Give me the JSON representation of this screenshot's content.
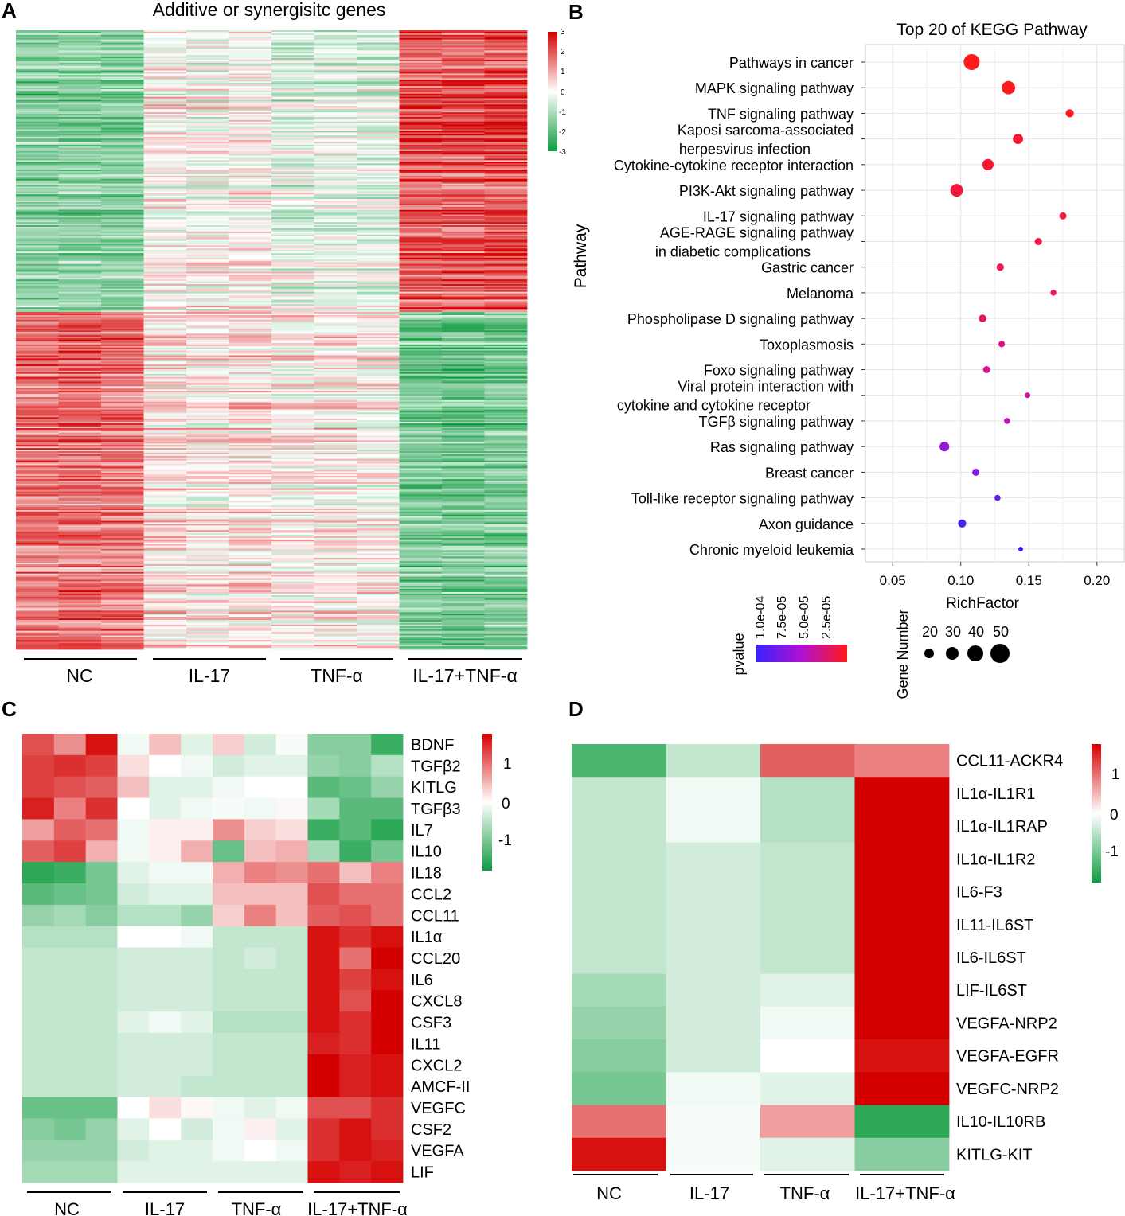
{
  "panels": {
    "A": {
      "label": "A",
      "title": "Additive or synergisitc genes",
      "groups": [
        "NC",
        "IL-17",
        "TNF-α",
        "IL-17+TNF-α"
      ],
      "legend_ticks": [
        "3",
        "2",
        "1",
        "0",
        "-1",
        "-2",
        "-3"
      ]
    },
    "B": {
      "label": "B",
      "title": "Top 20 of KEGG Pathway",
      "y_title": "Pathway",
      "x_title": "RichFactor",
      "pvalue_title": "pvalue",
      "pvalue_ticks": [
        "1.0e-04",
        "7.5e-05",
        "5.0e-05",
        "2.5e-05"
      ],
      "size_title": "Gene Number",
      "size_ticks": [
        "20",
        "30",
        "40",
        "50"
      ]
    },
    "C": {
      "label": "C",
      "groups": [
        "NC",
        "IL-17",
        "TNF-α",
        "IL-17+TNF-α"
      ],
      "legend_ticks": [
        "1",
        "0",
        "-1"
      ]
    },
    "D": {
      "label": "D",
      "groups": [
        "NC",
        "IL-17",
        "TNF-α",
        "IL-17+TNF-α"
      ],
      "legend_ticks": [
        "1",
        "0",
        "-1"
      ]
    }
  },
  "colors": {
    "heat_high": "#d40000",
    "heat_mid": "#ffffff",
    "heat_low": "#0e9b3f",
    "p_low": "#ff1a1a",
    "p_high": "#3a22ff"
  },
  "chart_data": [
    {
      "id": "A",
      "type": "heatmap",
      "title": "Additive or synergisitc genes",
      "columns": [
        "NC",
        "NC",
        "NC",
        "IL-17",
        "IL-17",
        "IL-17",
        "TNF-α",
        "TNF-α",
        "TNF-α",
        "IL-17+TNF-α",
        "IL-17+TNF-α",
        "IL-17+TNF-α"
      ],
      "cluster_pattern_upregulated": [
        -1.2,
        -1.2,
        -1.2,
        0.1,
        0.0,
        0.1,
        -0.3,
        -0.2,
        -0.3,
        1.6,
        1.6,
        1.7
      ],
      "cluster_pattern_downregulated": [
        1.3,
        1.4,
        1.3,
        0.3,
        0.2,
        0.3,
        0.1,
        0.2,
        0.1,
        -1.3,
        -1.4,
        -1.3
      ],
      "scale": [
        -3,
        3
      ]
    },
    {
      "id": "B",
      "type": "scatter",
      "title": "Top 20 of KEGG Pathway",
      "xlabel": "RichFactor",
      "ylabel": "Pathway",
      "xlim": [
        0.03,
        0.22
      ],
      "xticks": [
        "0.05",
        "0.10",
        "0.15",
        "0.20"
      ],
      "pathways": [
        {
          "name": [
            "Pathways in cancer"
          ],
          "x": 0.108,
          "genes": 52,
          "p": 2e-06
        },
        {
          "name": [
            "MAPK signaling pathway"
          ],
          "x": 0.135,
          "genes": 42,
          "p": 4e-06
        },
        {
          "name": [
            "TNF signaling pathway"
          ],
          "x": 0.18,
          "genes": 22,
          "p": 6e-06
        },
        {
          "name": [
            "Kaposi sarcoma-associated",
            "herpesvirus infection"
          ],
          "x": 0.142,
          "genes": 30,
          "p": 8e-06
        },
        {
          "name": [
            "Cytokine-cytokine receptor interaction"
          ],
          "x": 0.12,
          "genes": 34,
          "p": 1e-05
        },
        {
          "name": [
            "PI3K-Akt signaling pathway"
          ],
          "x": 0.097,
          "genes": 40,
          "p": 1.2e-05
        },
        {
          "name": [
            "IL-17 signaling pathway"
          ],
          "x": 0.175,
          "genes": 18,
          "p": 1.4e-05
        },
        {
          "name": [
            "AGE-RAGE signaling pathway",
            "in diabetic complications"
          ],
          "x": 0.157,
          "genes": 18,
          "p": 1.6e-05
        },
        {
          "name": [
            "Gastric cancer"
          ],
          "x": 0.129,
          "genes": 19,
          "p": 1.8e-05
        },
        {
          "name": [
            "Melanoma"
          ],
          "x": 0.168,
          "genes": 13,
          "p": 2e-05
        },
        {
          "name": [
            "Phospholipase D signaling pathway"
          ],
          "x": 0.116,
          "genes": 20,
          "p": 2.5e-05
        },
        {
          "name": [
            "Toxoplasmosis"
          ],
          "x": 0.13,
          "genes": 16,
          "p": 3.5e-05
        },
        {
          "name": [
            "Foxo signaling pathway"
          ],
          "x": 0.119,
          "genes": 18,
          "p": 4e-05
        },
        {
          "name": [
            "Viral protein interaction with",
            "cytokine and cytokine receptor"
          ],
          "x": 0.149,
          "genes": 12,
          "p": 4.5e-05
        },
        {
          "name": [
            "TGFβ signaling pathway"
          ],
          "x": 0.134,
          "genes": 14,
          "p": 5.5e-05
        },
        {
          "name": [
            "Ras signaling pathway"
          ],
          "x": 0.088,
          "genes": 28,
          "p": 7e-05
        },
        {
          "name": [
            "Breast cancer"
          ],
          "x": 0.111,
          "genes": 18,
          "p": 7.5e-05
        },
        {
          "name": [
            "Toll-like receptor signaling pathway"
          ],
          "x": 0.127,
          "genes": 14,
          "p": 8.5e-05
        },
        {
          "name": [
            "Axon guidance"
          ],
          "x": 0.101,
          "genes": 22,
          "p": 9.5e-05
        },
        {
          "name": [
            "Chronic myeloid leukemia"
          ],
          "x": 0.144,
          "genes": 9,
          "p": 0.0001
        }
      ]
    },
    {
      "id": "C",
      "type": "heatmap",
      "columns": [
        "NC",
        "NC",
        "NC",
        "IL-17",
        "IL-17",
        "IL-17",
        "TNF-α",
        "TNF-α",
        "TNF-α",
        "IL-17+TNF-α",
        "IL-17+TNF-α",
        "IL-17+TNF-α"
      ],
      "rows": [
        "BDNF",
        "TGFβ2",
        "KITLG",
        "TGFβ3",
        "IL7",
        "IL10",
        "IL18",
        "CCL2",
        "CCL11",
        "IL1α",
        "CCL20",
        "IL6",
        "CXCL8",
        "CSF3",
        "IL11",
        "CXCL2",
        "AMCF-II",
        "VEGFC",
        "CSF2",
        "VEGFA",
        "LIF"
      ],
      "values": [
        [
          1.1,
          0.7,
          1.5,
          -0.1,
          0.4,
          -0.2,
          0.3,
          -0.3,
          -0.05,
          -0.8,
          -0.8,
          -1.3
        ],
        [
          1.2,
          1.3,
          1.2,
          0.2,
          0.0,
          -0.1,
          -0.3,
          -0.2,
          -0.2,
          -0.7,
          -0.8,
          -0.5
        ],
        [
          1.2,
          1.1,
          1.0,
          0.4,
          -0.2,
          -0.2,
          -0.1,
          0.0,
          0.0,
          -1.1,
          -1.0,
          -0.7
        ],
        [
          1.4,
          0.8,
          1.3,
          0.0,
          -0.2,
          -0.1,
          -0.05,
          -0.1,
          0.05,
          -0.6,
          -1.1,
          -1.1
        ],
        [
          0.6,
          1.0,
          0.9,
          -0.1,
          0.1,
          0.1,
          0.7,
          0.3,
          0.2,
          -1.3,
          -1.1,
          -1.4
        ],
        [
          1.0,
          1.2,
          0.5,
          -0.1,
          0.1,
          0.5,
          -1.0,
          0.4,
          0.5,
          -0.6,
          -1.3,
          -0.9
        ],
        [
          -1.4,
          -1.3,
          -0.9,
          -0.2,
          -0.1,
          -0.1,
          0.5,
          0.8,
          0.7,
          0.9,
          0.4,
          0.8
        ],
        [
          -1.1,
          -1.0,
          -0.9,
          -0.3,
          -0.2,
          -0.2,
          0.4,
          0.4,
          0.4,
          1.1,
          0.9,
          0.9
        ],
        [
          -0.7,
          -0.6,
          -0.8,
          -0.5,
          -0.5,
          -0.7,
          0.3,
          0.8,
          0.4,
          1.0,
          1.1,
          0.9
        ],
        [
          -0.5,
          -0.5,
          -0.5,
          0.0,
          0.0,
          -0.1,
          -0.4,
          -0.4,
          -0.4,
          1.5,
          1.3,
          1.5
        ],
        [
          -0.4,
          -0.4,
          -0.4,
          -0.3,
          -0.3,
          -0.3,
          -0.4,
          -0.3,
          -0.4,
          1.5,
          0.9,
          1.6
        ],
        [
          -0.4,
          -0.4,
          -0.4,
          -0.3,
          -0.3,
          -0.3,
          -0.4,
          -0.4,
          -0.4,
          1.5,
          1.2,
          1.5
        ],
        [
          -0.4,
          -0.4,
          -0.4,
          -0.3,
          -0.3,
          -0.3,
          -0.4,
          -0.4,
          -0.4,
          1.5,
          1.1,
          1.6
        ],
        [
          -0.4,
          -0.4,
          -0.4,
          -0.2,
          -0.1,
          -0.2,
          -0.5,
          -0.5,
          -0.5,
          1.5,
          1.3,
          1.6
        ],
        [
          -0.4,
          -0.4,
          -0.4,
          -0.3,
          -0.3,
          -0.3,
          -0.4,
          -0.4,
          -0.4,
          1.4,
          1.3,
          1.7
        ],
        [
          -0.4,
          -0.4,
          -0.4,
          -0.3,
          -0.3,
          -0.3,
          -0.4,
          -0.4,
          -0.4,
          1.6,
          1.4,
          1.5
        ],
        [
          -0.4,
          -0.4,
          -0.4,
          -0.3,
          -0.3,
          -0.4,
          -0.4,
          -0.4,
          -0.4,
          1.6,
          1.4,
          1.5
        ],
        [
          -1.0,
          -1.0,
          -1.0,
          0.0,
          0.2,
          0.05,
          -0.1,
          -0.2,
          -0.1,
          1.1,
          1.1,
          1.3
        ],
        [
          -0.8,
          -0.9,
          -0.7,
          -0.2,
          0.0,
          -0.3,
          -0.1,
          0.1,
          -0.2,
          1.3,
          1.5,
          1.3
        ],
        [
          -0.7,
          -0.7,
          -0.7,
          -0.3,
          -0.2,
          -0.2,
          -0.1,
          0.0,
          -0.1,
          1.3,
          1.5,
          1.4
        ],
        [
          -0.6,
          -0.6,
          -0.6,
          -0.2,
          -0.2,
          -0.2,
          -0.2,
          -0.2,
          -0.2,
          1.5,
          1.4,
          1.5
        ]
      ],
      "scale": [
        -1.6,
        1.6
      ]
    },
    {
      "id": "D",
      "type": "heatmap",
      "columns": [
        "NC",
        "IL-17",
        "TNF-α",
        "IL-17+TNF-α"
      ],
      "rows": [
        "CCL11-ACKR4",
        "IL1α-IL1R1",
        "IL1α-IL1RAP",
        "IL1α-IL1R2",
        "IL6-F3",
        "IL11-IL6ST",
        "IL6-IL6ST",
        "LIF-IL6ST",
        "VEGFA-NRP2",
        "VEGFA-EGFR",
        "VEGFC-NRP2",
        "IL10-IL10RB",
        "KITLG-KIT"
      ],
      "values": [
        [
          -1.2,
          -0.4,
          1.0,
          0.8
        ],
        [
          -0.4,
          -0.1,
          -0.5,
          1.6
        ],
        [
          -0.4,
          -0.1,
          -0.5,
          1.6
        ],
        [
          -0.4,
          -0.3,
          -0.4,
          1.6
        ],
        [
          -0.4,
          -0.3,
          -0.4,
          1.6
        ],
        [
          -0.4,
          -0.3,
          -0.4,
          1.6
        ],
        [
          -0.4,
          -0.3,
          -0.4,
          1.6
        ],
        [
          -0.6,
          -0.3,
          -0.2,
          1.6
        ],
        [
          -0.7,
          -0.3,
          -0.1,
          1.6
        ],
        [
          -0.8,
          -0.3,
          0.0,
          1.5
        ],
        [
          -0.9,
          -0.1,
          -0.2,
          1.6
        ],
        [
          0.9,
          -0.05,
          0.6,
          -1.4
        ],
        [
          1.5,
          -0.05,
          -0.2,
          -0.8
        ]
      ],
      "scale": [
        -1.6,
        1.6
      ]
    }
  ]
}
